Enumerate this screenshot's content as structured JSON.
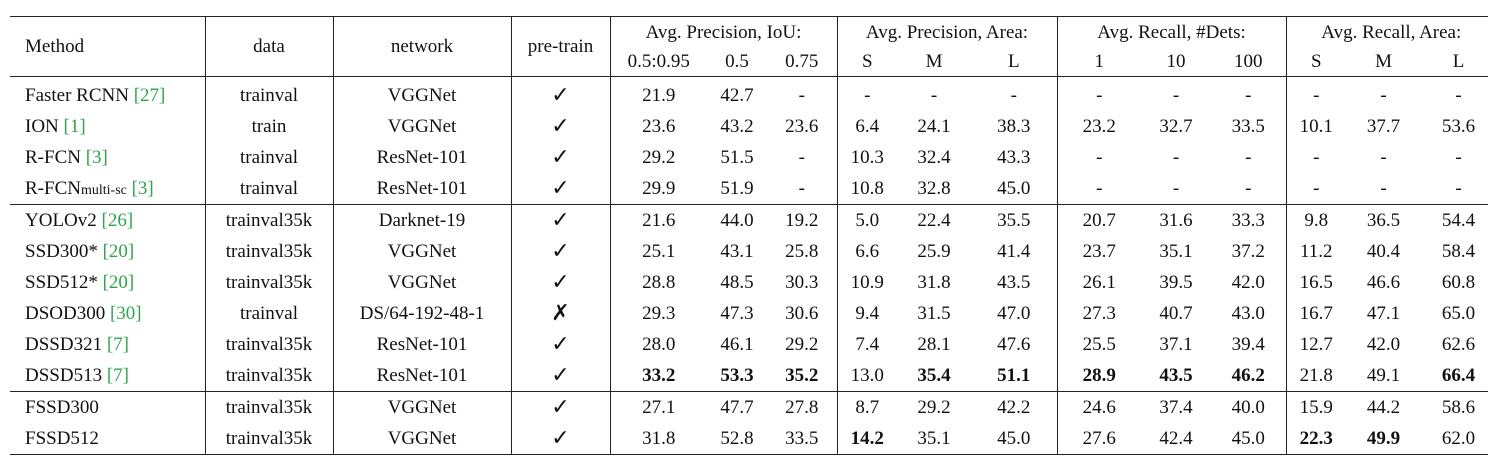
{
  "headers": {
    "method": "Method",
    "data": "data",
    "network": "network",
    "pretrain": "pre-train",
    "ap_iou": "Avg. Precision, IoU:",
    "ap_area": "Avg. Precision, Area:",
    "ar_dets": "Avg. Recall, #Dets:",
    "ar_area": "Avg. Recall, Area:",
    "sub": [
      "0.5:0.95",
      "0.5",
      "0.75",
      "S",
      "M",
      "L",
      "1",
      "10",
      "100",
      "S",
      "M",
      "L"
    ]
  },
  "marks": {
    "check": "✓",
    "cross": "✗"
  },
  "groups": [
    [
      {
        "name": "Faster RCNN",
        "cite": "[27]",
        "data": "trainval",
        "network": "VGGNet",
        "pretrain": "check",
        "vals": [
          "21.9",
          "42.7",
          "-",
          "-",
          "-",
          "-",
          "-",
          "-",
          "-",
          "-",
          "-",
          "-"
        ],
        "bold": []
      },
      {
        "name": "ION",
        "cite": "[1]",
        "data": "train",
        "network": "VGGNet",
        "pretrain": "check",
        "vals": [
          "23.6",
          "43.2",
          "23.6",
          "6.4",
          "24.1",
          "38.3",
          "23.2",
          "32.7",
          "33.5",
          "10.1",
          "37.7",
          "53.6"
        ],
        "bold": []
      },
      {
        "name": "R-FCN",
        "cite": "[3]",
        "data": "trainval",
        "network": "ResNet-101",
        "pretrain": "check",
        "vals": [
          "29.2",
          "51.5",
          "-",
          "10.3",
          "32.4",
          "43.3",
          "-",
          "-",
          "-",
          "-",
          "-",
          "-"
        ],
        "bold": []
      },
      {
        "name": "R-FCN",
        "sub": "multi-sc",
        "cite": "[3]",
        "data": "trainval",
        "network": "ResNet-101",
        "pretrain": "check",
        "vals": [
          "29.9",
          "51.9",
          "-",
          "10.8",
          "32.8",
          "45.0",
          "-",
          "-",
          "-",
          "-",
          "-",
          "-"
        ],
        "bold": []
      }
    ],
    [
      {
        "name": "YOLOv2",
        "cite": "[26]",
        "data": "trainval35k",
        "network": "Darknet-19",
        "pretrain": "check",
        "vals": [
          "21.6",
          "44.0",
          "19.2",
          "5.0",
          "22.4",
          "35.5",
          "20.7",
          "31.6",
          "33.3",
          "9.8",
          "36.5",
          "54.4"
        ],
        "bold": []
      },
      {
        "name": "SSD300*",
        "cite": "[20]",
        "data": "trainval35k",
        "network": "VGGNet",
        "pretrain": "check",
        "vals": [
          "25.1",
          "43.1",
          "25.8",
          "6.6",
          "25.9",
          "41.4",
          "23.7",
          "35.1",
          "37.2",
          "11.2",
          "40.4",
          "58.4"
        ],
        "bold": []
      },
      {
        "name": "SSD512*",
        "cite": "[20]",
        "data": "trainval35k",
        "network": "VGGNet",
        "pretrain": "check",
        "vals": [
          "28.8",
          "48.5",
          "30.3",
          "10.9",
          "31.8",
          "43.5",
          "26.1",
          "39.5",
          "42.0",
          "16.5",
          "46.6",
          "60.8"
        ],
        "bold": []
      },
      {
        "name": "DSOD300",
        "cite": "[30]",
        "data": "trainval",
        "network": "DS/64-192-48-1",
        "pretrain": "cross",
        "vals": [
          "29.3",
          "47.3",
          "30.6",
          "9.4",
          "31.5",
          "47.0",
          "27.3",
          "40.7",
          "43.0",
          "16.7",
          "47.1",
          "65.0"
        ],
        "bold": []
      },
      {
        "name": "DSSD321",
        "cite": "[7]",
        "data": "trainval35k",
        "network": "ResNet-101",
        "pretrain": "check",
        "vals": [
          "28.0",
          "46.1",
          "29.2",
          "7.4",
          "28.1",
          "47.6",
          "25.5",
          "37.1",
          "39.4",
          "12.7",
          "42.0",
          "62.6"
        ],
        "bold": []
      },
      {
        "name": "DSSD513",
        "cite": "[7]",
        "data": "trainval35k",
        "network": "ResNet-101",
        "pretrain": "check",
        "vals": [
          "33.2",
          "53.3",
          "35.2",
          "13.0",
          "35.4",
          "51.1",
          "28.9",
          "43.5",
          "46.2",
          "21.8",
          "49.1",
          "66.4"
        ],
        "bold": [
          0,
          1,
          2,
          4,
          5,
          6,
          7,
          8,
          11
        ]
      }
    ],
    [
      {
        "name": "FSSD300",
        "cite": "",
        "data": "trainval35k",
        "network": "VGGNet",
        "pretrain": "check",
        "vals": [
          "27.1",
          "47.7",
          "27.8",
          "8.7",
          "29.2",
          "42.2",
          "24.6",
          "37.4",
          "40.0",
          "15.9",
          "44.2",
          "58.6"
        ],
        "bold": []
      },
      {
        "name": "FSSD512",
        "cite": "",
        "data": "trainval35k",
        "network": "VGGNet",
        "pretrain": "check",
        "vals": [
          "31.8",
          "52.8",
          "33.5",
          "14.2",
          "35.1",
          "45.0",
          "27.6",
          "42.4",
          "45.0",
          "22.3",
          "49.9",
          "62.0"
        ],
        "bold": [
          3,
          9,
          10
        ]
      }
    ]
  ]
}
